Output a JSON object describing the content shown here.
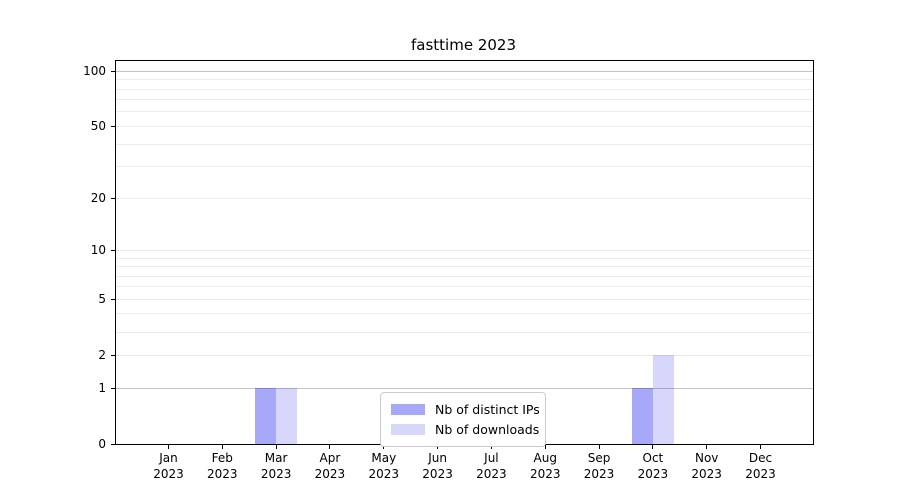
{
  "chart_data": {
    "type": "bar",
    "title": "fasttime 2023",
    "xlabel": "",
    "ylabel": "",
    "categories": [
      "Jan 2023",
      "Feb 2023",
      "Mar 2023",
      "Apr 2023",
      "May 2023",
      "Jun 2023",
      "Jul 2023",
      "Aug 2023",
      "Sep 2023",
      "Oct 2023",
      "Nov 2023",
      "Dec 2023"
    ],
    "series": [
      {
        "name": "Nb of distinct IPs",
        "color": "rgba(0,0,238,0.34)",
        "values": [
          0,
          0,
          1,
          0,
          0,
          0,
          0,
          0,
          0,
          1,
          0,
          0
        ]
      },
      {
        "name": "Nb of downloads",
        "color": "rgba(0,0,238,0.155)",
        "values": [
          0,
          0,
          1,
          0,
          0,
          0,
          0,
          0,
          0,
          2,
          0,
          0
        ]
      }
    ],
    "yscale": "log1p",
    "ylim": [
      0,
      113.6
    ],
    "yticks": [
      0,
      1,
      2,
      5,
      10,
      20,
      50,
      100
    ],
    "minor_gridlines": [
      3,
      4,
      6,
      7,
      8,
      9,
      30,
      40,
      60,
      70,
      80,
      90
    ],
    "emphasized_gridlines": [
      1,
      100
    ],
    "grid": true,
    "legend_position": "lower center",
    "axis_color": "#000000",
    "gridline_color": "#ebebeb",
    "gridline_emphasis_color": "#c4c4c4"
  }
}
